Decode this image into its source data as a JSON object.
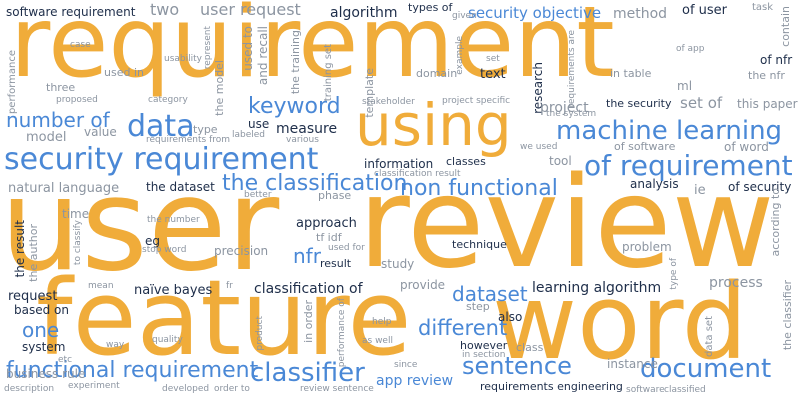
{
  "colors": {
    "orange": "#F0AC3A",
    "blue": "#4A88D6",
    "navy": "#1E2E4A",
    "gray": "#8C95A1"
  },
  "words": [
    {
      "t": "requirement",
      "c": "orange"
    },
    {
      "t": "user",
      "c": "orange"
    },
    {
      "t": "review",
      "c": "orange"
    },
    {
      "t": "feature",
      "c": "orange"
    },
    {
      "t": "word",
      "c": "orange"
    },
    {
      "t": "using",
      "c": "orange"
    },
    {
      "t": "security requirement",
      "c": "blue"
    },
    {
      "t": "machine learning",
      "c": "blue"
    },
    {
      "t": "of requirement",
      "c": "blue"
    },
    {
      "t": "data",
      "c": "blue"
    },
    {
      "t": "keyword",
      "c": "blue"
    },
    {
      "t": "the classification",
      "c": "blue"
    },
    {
      "t": "non functional",
      "c": "blue"
    },
    {
      "t": "number of",
      "c": "blue"
    },
    {
      "t": "classifier",
      "c": "blue"
    },
    {
      "t": "functional requirement",
      "c": "blue"
    },
    {
      "t": "sentence",
      "c": "blue"
    },
    {
      "t": "document",
      "c": "blue"
    },
    {
      "t": "different",
      "c": "blue"
    },
    {
      "t": "dataset",
      "c": "blue"
    },
    {
      "t": "one",
      "c": "blue"
    },
    {
      "t": "nfr",
      "c": "blue"
    },
    {
      "t": "app review",
      "c": "blue"
    },
    {
      "t": "software requirement",
      "c": "navy"
    },
    {
      "t": "algorithm",
      "c": "navy"
    },
    {
      "t": "of user",
      "c": "navy"
    },
    {
      "t": "types of",
      "c": "navy"
    },
    {
      "t": "user request",
      "c": "gray"
    },
    {
      "t": "security objective",
      "c": "blue"
    },
    {
      "t": "method",
      "c": "gray"
    },
    {
      "t": "two",
      "c": "gray"
    },
    {
      "t": "research",
      "c": "navy"
    },
    {
      "t": "text",
      "c": "navy"
    },
    {
      "t": "of nfr",
      "c": "navy"
    },
    {
      "t": "ml",
      "c": "gray"
    },
    {
      "t": "in table",
      "c": "gray"
    },
    {
      "t": "project",
      "c": "gray"
    },
    {
      "t": "the security",
      "c": "navy"
    },
    {
      "t": "set of",
      "c": "gray"
    },
    {
      "t": "this paper",
      "c": "gray"
    },
    {
      "t": "of software",
      "c": "gray"
    },
    {
      "t": "of word",
      "c": "gray"
    },
    {
      "t": "measure",
      "c": "navy"
    },
    {
      "t": "use",
      "c": "navy"
    },
    {
      "t": "type",
      "c": "gray"
    },
    {
      "t": "value",
      "c": "gray"
    },
    {
      "t": "model",
      "c": "gray"
    },
    {
      "t": "information",
      "c": "navy"
    },
    {
      "t": "classes",
      "c": "navy"
    },
    {
      "t": "tool",
      "c": "gray"
    },
    {
      "t": "natural language",
      "c": "gray"
    },
    {
      "t": "the dataset",
      "c": "navy"
    },
    {
      "t": "analysis",
      "c": "navy"
    },
    {
      "t": "ie",
      "c": "gray"
    },
    {
      "t": "of security",
      "c": "navy"
    },
    {
      "t": "approach",
      "c": "navy"
    },
    {
      "t": "tf idf",
      "c": "gray"
    },
    {
      "t": "technique",
      "c": "navy"
    },
    {
      "t": "precision",
      "c": "gray"
    },
    {
      "t": "result",
      "c": "navy"
    },
    {
      "t": "study",
      "c": "gray"
    },
    {
      "t": "problem",
      "c": "gray"
    },
    {
      "t": "eg",
      "c": "navy"
    },
    {
      "t": "time",
      "c": "gray"
    },
    {
      "t": "request",
      "c": "navy"
    },
    {
      "t": "naïve bayes",
      "c": "navy"
    },
    {
      "t": "classification of",
      "c": "navy"
    },
    {
      "t": "provide",
      "c": "gray"
    },
    {
      "t": "learning algorithm",
      "c": "navy"
    },
    {
      "t": "process",
      "c": "gray"
    },
    {
      "t": "based on",
      "c": "navy"
    },
    {
      "t": "step",
      "c": "gray"
    },
    {
      "t": "also",
      "c": "navy"
    },
    {
      "t": "system",
      "c": "navy"
    },
    {
      "t": "however",
      "c": "navy"
    },
    {
      "t": "business rule",
      "c": "gray"
    },
    {
      "t": "requirements engineering",
      "c": "navy"
    },
    {
      "t": "instance",
      "c": "gray"
    },
    {
      "t": "three",
      "c": "gray"
    },
    {
      "t": "used in",
      "c": "gray"
    },
    {
      "t": "performance",
      "c": "gray"
    },
    {
      "t": "used to",
      "c": "gray"
    },
    {
      "t": "and recall",
      "c": "gray"
    },
    {
      "t": "the model",
      "c": "gray"
    },
    {
      "t": "the training",
      "c": "gray"
    },
    {
      "t": "training set",
      "c": "gray"
    },
    {
      "t": "template",
      "c": "gray"
    },
    {
      "t": "domain",
      "c": "gray"
    },
    {
      "t": "the result",
      "c": "navy"
    },
    {
      "t": "the author",
      "c": "gray"
    },
    {
      "t": "in order",
      "c": "gray"
    },
    {
      "t": "the classifier",
      "c": "gray"
    },
    {
      "t": "according to",
      "c": "gray"
    },
    {
      "t": "data set",
      "c": "gray"
    },
    {
      "t": "task",
      "c": "gray"
    },
    {
      "t": "contain",
      "c": "gray"
    },
    {
      "t": "the nfr",
      "c": "gray"
    },
    {
      "t": "of app",
      "c": "gray"
    },
    {
      "t": "case",
      "c": "gray"
    },
    {
      "t": "usability",
      "c": "gray"
    },
    {
      "t": "proposed",
      "c": "gray"
    },
    {
      "t": "category",
      "c": "gray"
    },
    {
      "t": "labeled",
      "c": "gray"
    },
    {
      "t": "various",
      "c": "gray"
    },
    {
      "t": "requirements from",
      "c": "gray"
    },
    {
      "t": "represent",
      "c": "gray"
    },
    {
      "t": "stakeholder",
      "c": "gray"
    },
    {
      "t": "project specific",
      "c": "gray"
    },
    {
      "t": "requirements are",
      "c": "gray"
    },
    {
      "t": "example",
      "c": "gray"
    },
    {
      "t": "given",
      "c": "gray"
    },
    {
      "t": "set",
      "c": "gray"
    },
    {
      "t": "the system",
      "c": "gray"
    },
    {
      "t": "we used",
      "c": "gray"
    },
    {
      "t": "classification result",
      "c": "gray"
    },
    {
      "t": "better",
      "c": "gray"
    },
    {
      "t": "phase",
      "c": "gray"
    },
    {
      "t": "the number",
      "c": "gray"
    },
    {
      "t": "stop word",
      "c": "gray"
    },
    {
      "t": "to classify",
      "c": "gray"
    },
    {
      "t": "used for",
      "c": "gray"
    },
    {
      "t": "type of",
      "c": "gray"
    },
    {
      "t": "mean",
      "c": "gray"
    },
    {
      "t": "fr",
      "c": "gray"
    },
    {
      "t": "performance of",
      "c": "gray"
    },
    {
      "t": "help",
      "c": "gray"
    },
    {
      "t": "as well",
      "c": "gray"
    },
    {
      "t": "class",
      "c": "gray"
    },
    {
      "t": "in section",
      "c": "gray"
    },
    {
      "t": "since",
      "c": "gray"
    },
    {
      "t": "quality",
      "c": "gray"
    },
    {
      "t": "product",
      "c": "gray"
    },
    {
      "t": "way",
      "c": "gray"
    },
    {
      "t": "etc",
      "c": "gray"
    },
    {
      "t": "description",
      "c": "gray"
    },
    {
      "t": "experiment",
      "c": "gray"
    },
    {
      "t": "developed",
      "c": "gray"
    },
    {
      "t": "order to",
      "c": "gray"
    },
    {
      "t": "review sentence",
      "c": "gray"
    },
    {
      "t": "software",
      "c": "gray"
    },
    {
      "t": "classified",
      "c": "gray"
    }
  ]
}
